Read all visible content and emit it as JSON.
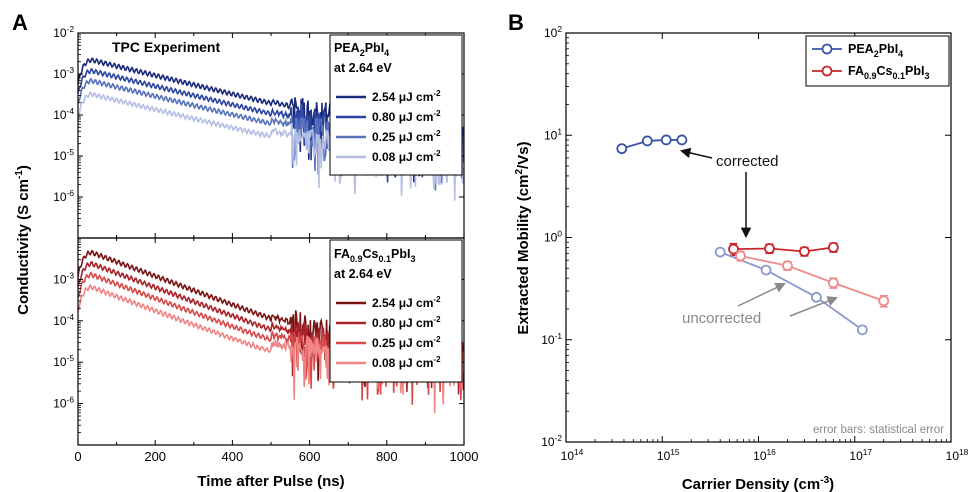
{
  "panels": {
    "a_letter": "A",
    "b_letter": "B"
  },
  "chart_data": [
    {
      "type": "line",
      "panel": "A-top",
      "title": "TPC Experiment",
      "legend_title": [
        "PEA",
        "2",
        "PbI",
        "4"
      ],
      "legend_subtitle": "at 2.64 eV",
      "xlim": [
        0,
        1000
      ],
      "y_scale": "log",
      "ylim_exp": [
        -7,
        -2
      ],
      "y_tick_exponents": [
        -6,
        -5,
        -4,
        -3,
        -2
      ],
      "grid": false,
      "legend_position": "top-right",
      "series": [
        {
          "name": "2.54",
          "color": "#1a2a7a",
          "peak": 0.0022
        },
        {
          "name": "0.80",
          "color": "#2c45a0",
          "peak": 0.0012
        },
        {
          "name": "0.25",
          "color": "#5872bb",
          "peak": 0.00068
        },
        {
          "name": "0.08",
          "color": "#b4bfe3",
          "peak": 0.00032
        }
      ],
      "fluence_unit": {
        "prefix": "μJ cm",
        "exp": "-2"
      },
      "decay_tau_ns": 190,
      "rise_peak_ns": 35
    },
    {
      "type": "line",
      "panel": "A-bottom",
      "legend_title": [
        "FA",
        "0.9",
        "Cs",
        "0.1",
        "PbI",
        "3"
      ],
      "legend_subtitle": "at 2.64 eV",
      "xlim": [
        0,
        1000
      ],
      "xticks": [
        0,
        200,
        400,
        600,
        800,
        1000
      ],
      "xlabel": "Time after Pulse (ns)",
      "y_scale": "log",
      "ylim_exp": [
        -7,
        -2
      ],
      "y_tick_exponents": [
        -6,
        -5,
        -4,
        -3
      ],
      "grid": false,
      "legend_position": "right",
      "series": [
        {
          "name": "2.54",
          "color": "#7a1414",
          "peak": 0.0045
        },
        {
          "name": "0.80",
          "color": "#a8232a",
          "peak": 0.0024
        },
        {
          "name": "0.25",
          "color": "#d84a4a",
          "peak": 0.0013
        },
        {
          "name": "0.08",
          "color": "#f08585",
          "peak": 0.00065
        }
      ],
      "fluence_unit": {
        "prefix": "μJ cm",
        "exp": "-2"
      },
      "decay_tau_ns": 125,
      "rise_peak_ns": 35
    },
    {
      "type": "scatter",
      "panel": "B",
      "x_scale": "log",
      "y_scale": "log",
      "xlim_exp": [
        14,
        18
      ],
      "ylim_exp": [
        -2,
        2
      ],
      "x_tick_exponents": [
        14,
        15,
        16,
        17,
        18
      ],
      "y_tick_exponents": [
        -2,
        -1,
        0,
        1,
        2
      ],
      "xlabel": "Carrier Density (cm",
      "xlabel_exp": "-3",
      "ylabel": "Extracted Mobility (cm",
      "ylabel_sup": "2",
      "ylabel_end": "/Vs)",
      "legend_position": "top-right",
      "series": [
        {
          "name": "PEA2PbI4 corrected",
          "legend": [
            "PEA",
            "2",
            "PbI",
            "4"
          ],
          "color": "#3a55a8",
          "x": [
            380000000000000.0,
            700000000000000.0,
            1100000000000000.0,
            1600000000000000.0
          ],
          "y": [
            7.4,
            8.8,
            9.0,
            9.0
          ]
        },
        {
          "name": "FA0.9Cs0.1PbI3 corrected",
          "legend": [
            "FA",
            "0.9",
            "Cs",
            "0.1",
            "PbI",
            "3"
          ],
          "color": "#c8252c",
          "x": [
            5500000000000000.0,
            1.3e+16,
            3e+16,
            6e+16
          ],
          "y": [
            0.77,
            0.78,
            0.73,
            0.8
          ],
          "yerr": [
            0.1,
            0.08,
            0.07,
            0.08
          ]
        },
        {
          "name": "PEA2PbI4 uncorrected",
          "color": "#8a98cc",
          "x": [
            4000000000000000.0,
            1.2e+16,
            4e+16,
            1.2e+17
          ],
          "y": [
            0.72,
            0.48,
            0.26,
            0.125
          ]
        },
        {
          "name": "FA0.9Cs0.1PbI3 uncorrected",
          "color": "#ee8a8a",
          "x": [
            6500000000000000.0,
            2e+16,
            6e+16,
            2e+17
          ],
          "y": [
            0.66,
            0.53,
            0.36,
            0.24
          ],
          "yerr": [
            0.07,
            0.05,
            0.04,
            0.03
          ]
        }
      ],
      "annotations": {
        "corrected": "corrected",
        "uncorrected": "uncorrected",
        "footnote": "error bars: statistical error"
      }
    }
  ],
  "panel_a_ylabel": "Conductivity (S cm",
  "panel_a_ylabel_sup": "-1",
  "panel_a_ylabel_end": ")"
}
